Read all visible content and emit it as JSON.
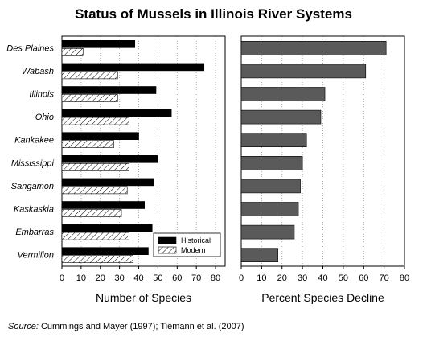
{
  "title": "Status of Mussels in Illinois River Systems",
  "source": {
    "label": "Source:",
    "text": "Cummings and Mayer (1997); Tiemann et al. (2007)"
  },
  "colors": {
    "historical": "#000000",
    "modern_hatch": "#000000",
    "decline": "#5a5a5a",
    "grid": "#999999"
  },
  "chart_data": [
    {
      "type": "bar",
      "orientation": "horizontal",
      "categories": [
        "Des Plaines",
        "Wabash",
        "Illinois",
        "Ohio",
        "Kankakee",
        "Mississippi",
        "Sangamon",
        "Kaskaskia",
        "Embarras",
        "Vermilion"
      ],
      "series": [
        {
          "name": "Historical",
          "values": [
            38,
            74,
            49,
            57,
            40,
            50,
            48,
            43,
            47,
            45
          ]
        },
        {
          "name": "Modern",
          "values": [
            11,
            29,
            29,
            35,
            27,
            35,
            34,
            31,
            35,
            37
          ]
        }
      ],
      "xlabel": "Number of Species",
      "xlim": [
        0,
        85
      ],
      "xticks": [
        0,
        10,
        20,
        30,
        40,
        50,
        60,
        70,
        80
      ],
      "grid": "vertical dotted",
      "legend": "bottom-right"
    },
    {
      "type": "bar",
      "orientation": "horizontal",
      "categories": [
        "Des Plaines",
        "Wabash",
        "Illinois",
        "Ohio",
        "Kankakee",
        "Mississippi",
        "Sangamon",
        "Kaskaskia",
        "Embarras",
        "Vermilion"
      ],
      "values": [
        71,
        61,
        41,
        39,
        32,
        30,
        29,
        28,
        26,
        18
      ],
      "xlabel": "Percent Species Decline",
      "xlim": [
        0,
        80
      ],
      "xticks": [
        0,
        10,
        20,
        30,
        40,
        50,
        60,
        70,
        80
      ],
      "grid": "vertical dotted"
    }
  ]
}
